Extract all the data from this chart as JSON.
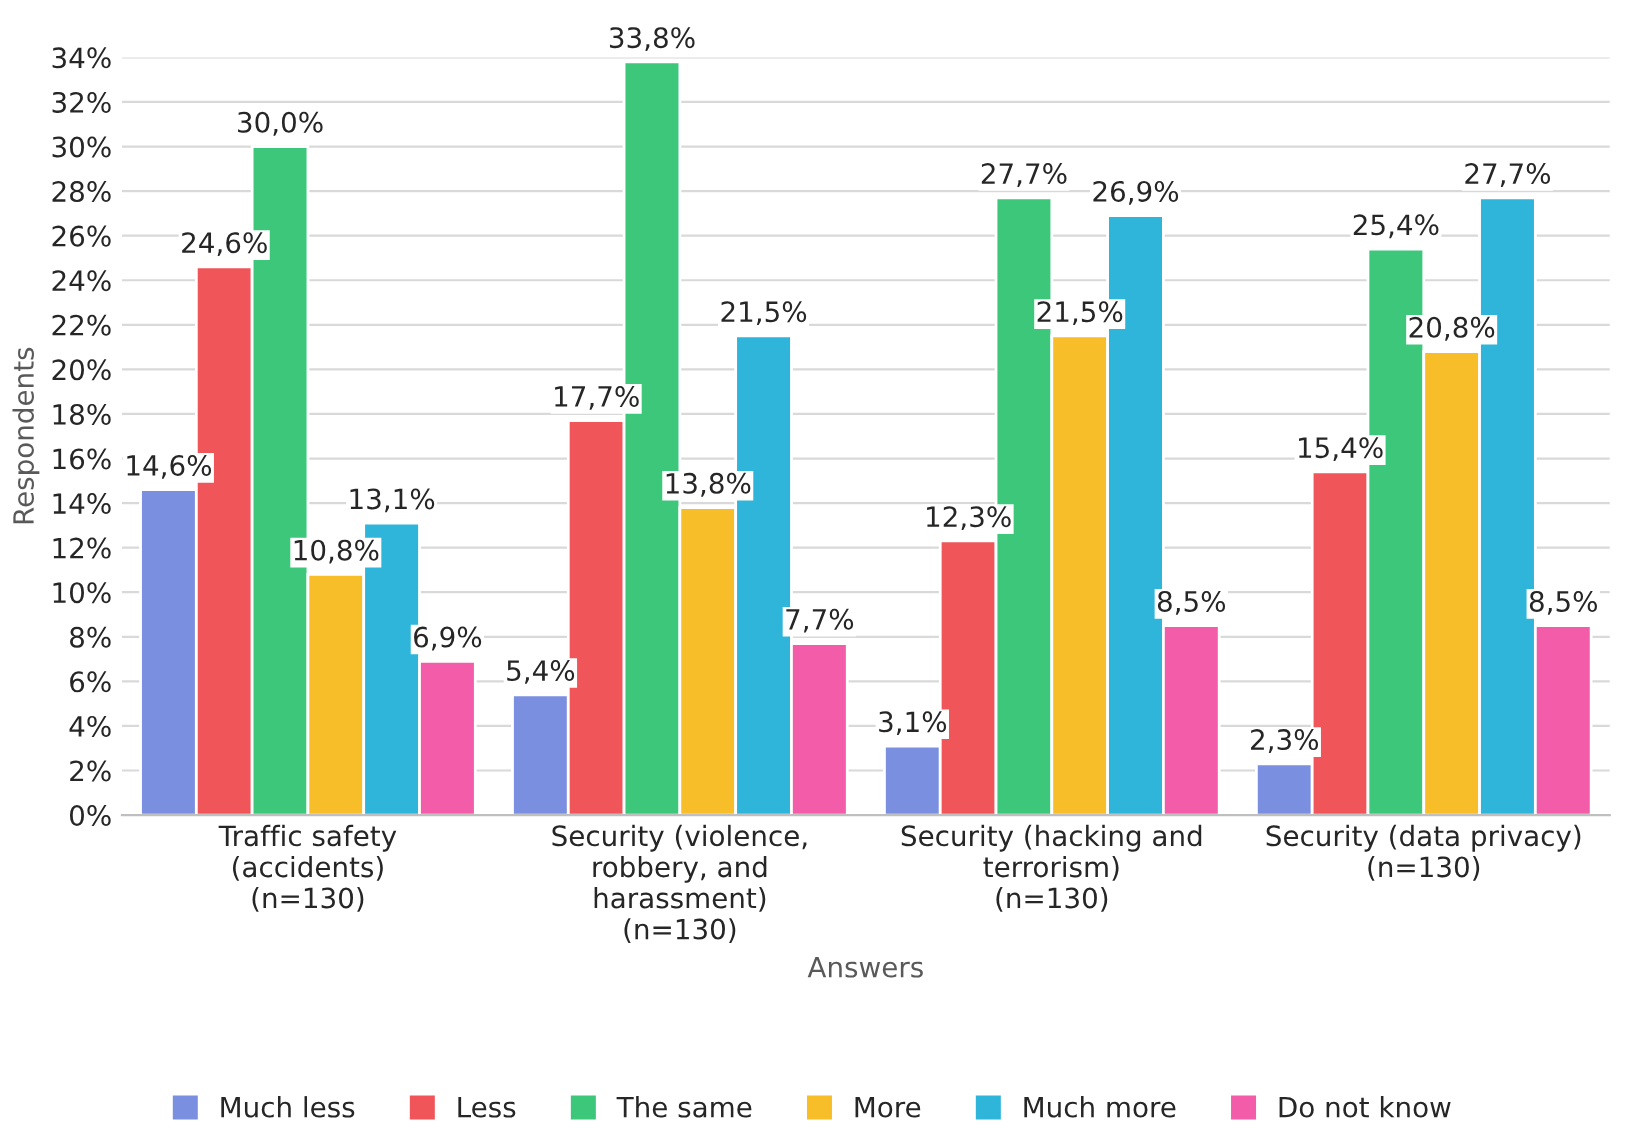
{
  "chart_data": {
    "type": "bar",
    "xlabel": "Answers",
    "ylabel": "Respondents",
    "categories": [
      "Traffic safety\n(accidents)\n(n=130)",
      "Security (violence,\nrobbery, and\nharassment)\n(n=130)",
      "Security (hacking and\nterrorism)\n(n=130)",
      "Security (data privacy)\n(n=130)"
    ],
    "series": [
      {
        "name": "Much less",
        "color": "#7b8fe0",
        "values": [
          14.6,
          5.4,
          3.1,
          2.3
        ],
        "value_labels": [
          "14,6%",
          "5,4%",
          "3,1%",
          "2,3%"
        ]
      },
      {
        "name": "Less",
        "color": "#f0555a",
        "values": [
          24.6,
          17.7,
          12.3,
          15.4
        ],
        "value_labels": [
          "24,6%",
          "17,7%",
          "12,3%",
          "15,4%"
        ]
      },
      {
        "name": "The same",
        "color": "#3cc77a",
        "values": [
          30.0,
          33.8,
          27.7,
          25.4
        ],
        "value_labels": [
          "30,0%",
          "33,8%",
          "27,7%",
          "25,4%"
        ]
      },
      {
        "name": "More",
        "color": "#f7be2a",
        "values": [
          10.8,
          13.8,
          21.5,
          20.8
        ],
        "value_labels": [
          "10,8%",
          "13,8%",
          "21,5%",
          "20,8%"
        ]
      },
      {
        "name": "Much more",
        "color": "#2eb5d9",
        "values": [
          13.1,
          21.5,
          26.9,
          27.7
        ],
        "value_labels": [
          "13,1%",
          "21,5%",
          "26,9%",
          "27,7%"
        ]
      },
      {
        "name": "Do not know",
        "color": "#f25ca8",
        "values": [
          6.9,
          7.7,
          8.5,
          8.5
        ],
        "value_labels": [
          "6,9%",
          "7,7%",
          "8,5%",
          "8,5%"
        ]
      }
    ],
    "ylim": [
      0,
      34
    ],
    "yticks": [
      {
        "value": 0,
        "label": "0%"
      },
      {
        "value": 2,
        "label": "2%"
      },
      {
        "value": 4,
        "label": "4%"
      },
      {
        "value": 6,
        "label": "6%"
      },
      {
        "value": 8,
        "label": "8%"
      },
      {
        "value": 10,
        "label": "10%"
      },
      {
        "value": 12,
        "label": "12%"
      },
      {
        "value": 14,
        "label": "14%"
      },
      {
        "value": 16,
        "label": "16%"
      },
      {
        "value": 18,
        "label": "18%"
      },
      {
        "value": 20,
        "label": "20%"
      },
      {
        "value": 22,
        "label": "22%"
      },
      {
        "value": 24,
        "label": "24%"
      },
      {
        "value": 26,
        "label": "26%"
      },
      {
        "value": 28,
        "label": "28%"
      },
      {
        "value": 30,
        "label": "30%"
      },
      {
        "value": 32,
        "label": "32%"
      },
      {
        "value": 34,
        "label": "34%"
      }
    ],
    "grid": "y",
    "legend": "bottom"
  }
}
